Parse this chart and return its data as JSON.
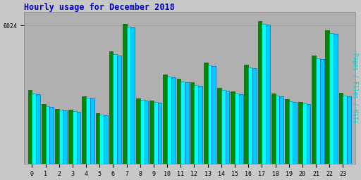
{
  "title": "Hourly usage for December 2018",
  "ylabel_right": "Pages / Files / Hits",
  "hours": [
    0,
    1,
    2,
    3,
    4,
    5,
    6,
    7,
    8,
    9,
    10,
    11,
    12,
    13,
    14,
    15,
    16,
    17,
    18,
    19,
    20,
    21,
    22,
    23
  ],
  "pages": [
    3200,
    2600,
    2400,
    2350,
    2950,
    2200,
    4900,
    6100,
    2850,
    2750,
    3900,
    3700,
    3550,
    4400,
    3300,
    3150,
    4300,
    6200,
    3050,
    2800,
    2700,
    4700,
    5800,
    3100
  ],
  "files": [
    3050,
    2500,
    2350,
    2300,
    2870,
    2130,
    4760,
    5960,
    2790,
    2680,
    3780,
    3590,
    3430,
    4290,
    3210,
    3060,
    4200,
    6080,
    2970,
    2720,
    2640,
    4600,
    5700,
    2960
  ],
  "hits": [
    3020,
    2480,
    2330,
    2280,
    2840,
    2110,
    4720,
    5920,
    2760,
    2660,
    3750,
    3560,
    3400,
    4260,
    3180,
    3030,
    4170,
    6040,
    2940,
    2690,
    2610,
    4570,
    5660,
    2930
  ],
  "bar_width": 0.3,
  "pages_color": "#008800",
  "files_color": "#00ffff",
  "hits_color": "#00ccff",
  "pages_edge": "#004400",
  "files_edge": "#008888",
  "hits_edge": "#0044bb",
  "bg_color": "#c8c8c8",
  "plot_bg_color": "#b0b0b0",
  "grid_color": "#a0a0a0",
  "title_color": "#0000cc",
  "ylabel_color": "#00cccc",
  "ytick_label": "6024",
  "ytick_val": 6024,
  "ylim_max": 6600,
  "figsize": [
    5.12,
    2.56
  ],
  "dpi": 100
}
